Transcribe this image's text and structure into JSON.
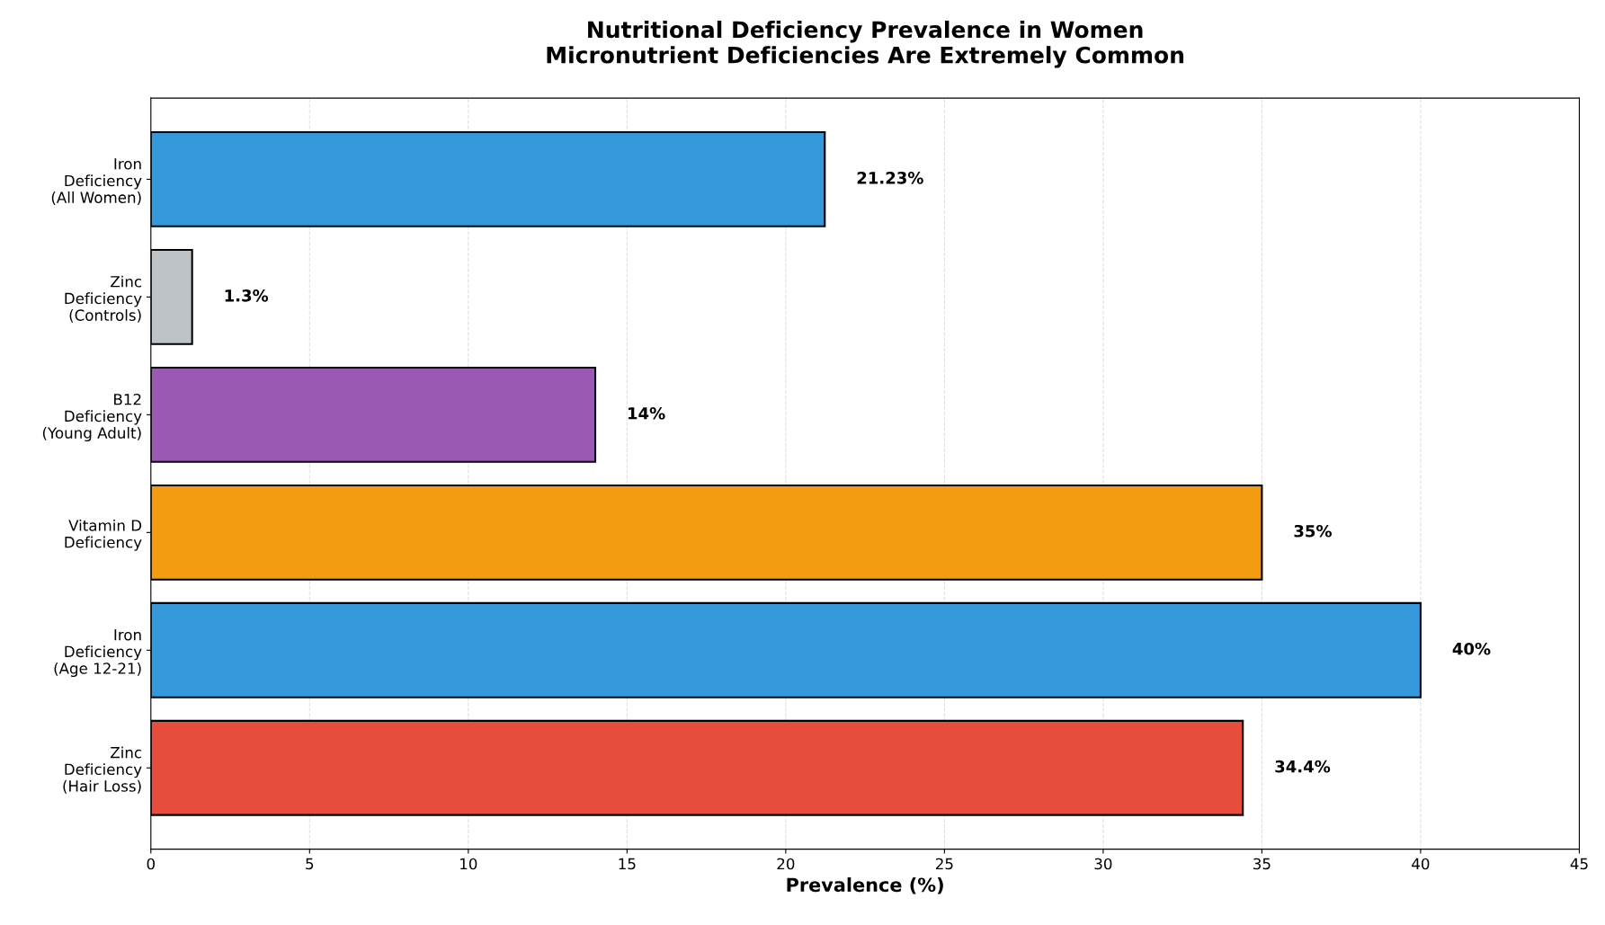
{
  "chart_data": {
    "type": "bar",
    "orientation": "horizontal",
    "title": "Nutritional Deficiency Prevalence in Women\nMicronutrient Deficiencies Are Extremely Common",
    "xlabel": "Prevalence (%)",
    "categories": [
      "Iron\nDeficiency\n(All Women)",
      "Zinc\nDeficiency\n(Controls)",
      "B12\nDeficiency\n(Young Adult)",
      "Vitamin D\nDeficiency",
      "Iron\nDeficiency\n(Age 12-21)",
      "Zinc\nDeficiency\n(Hair Loss)"
    ],
    "values": [
      21.23,
      1.3,
      14,
      35,
      40,
      34.4
    ],
    "colors": [
      "#3498db",
      "#bdc3c7",
      "#9b59b6",
      "#f39c12",
      "#3498db",
      "#e74c3c"
    ],
    "value_labels": [
      "21.23%",
      "1.3%",
      "14%",
      "35%",
      "40%",
      "34.4%"
    ],
    "xlim": [
      0,
      45
    ],
    "xticks": [
      0,
      5,
      10,
      15,
      20,
      25,
      30,
      35,
      40,
      45
    ],
    "grid": "x",
    "line_style": "dashed"
  }
}
